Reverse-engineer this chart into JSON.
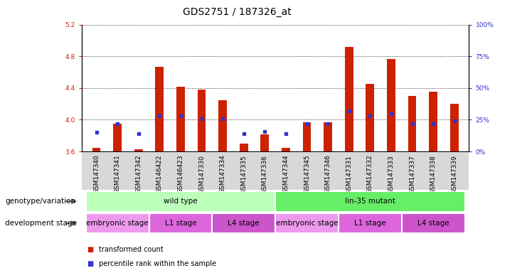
{
  "title": "GDS2751 / 187326_at",
  "samples": [
    "GSM147340",
    "GSM147341",
    "GSM147342",
    "GSM146422",
    "GSM146423",
    "GSM147330",
    "GSM147334",
    "GSM147335",
    "GSM147336",
    "GSM147344",
    "GSM147345",
    "GSM147346",
    "GSM147331",
    "GSM147332",
    "GSM147333",
    "GSM147337",
    "GSM147338",
    "GSM147339"
  ],
  "transformed_count": [
    3.65,
    3.95,
    3.63,
    4.67,
    4.42,
    4.38,
    4.25,
    3.7,
    3.82,
    3.65,
    3.97,
    3.97,
    4.92,
    4.45,
    4.77,
    4.3,
    4.35,
    4.2
  ],
  "percentile_rank": [
    15,
    22,
    14,
    28,
    28,
    26,
    26,
    14,
    16,
    14,
    22,
    22,
    32,
    28,
    30,
    22,
    22,
    24
  ],
  "ylim_left": [
    3.6,
    5.2
  ],
  "ylim_right": [
    0,
    100
  ],
  "yticks_left": [
    3.6,
    4.0,
    4.4,
    4.8,
    5.2
  ],
  "yticks_right": [
    0,
    25,
    50,
    75,
    100
  ],
  "bar_color": "#cc2200",
  "square_color": "#3333cc",
  "bar_width": 0.4,
  "base_value": 3.6,
  "genotype_groups": [
    {
      "label": "wild type",
      "start": 0,
      "end": 8,
      "color": "#bbffbb"
    },
    {
      "label": "lin-35 mutant",
      "start": 9,
      "end": 17,
      "color": "#66ee66"
    }
  ],
  "stage_groups": [
    {
      "label": "embryonic stage",
      "start": 0,
      "end": 2,
      "color": "#ee99ee"
    },
    {
      "label": "L1 stage",
      "start": 3,
      "end": 5,
      "color": "#dd66dd"
    },
    {
      "label": "L4 stage",
      "start": 6,
      "end": 8,
      "color": "#cc55cc"
    },
    {
      "label": "embryonic stage",
      "start": 9,
      "end": 11,
      "color": "#ee99ee"
    },
    {
      "label": "L1 stage",
      "start": 12,
      "end": 14,
      "color": "#dd66dd"
    },
    {
      "label": "L4 stage",
      "start": 15,
      "end": 17,
      "color": "#cc55cc"
    }
  ],
  "genotype_label": "genotype/variation",
  "stage_label": "development stage",
  "legend_items": [
    "transformed count",
    "percentile rank within the sample"
  ],
  "grid_color": "black",
  "background_color": "white",
  "title_fontsize": 10,
  "tick_fontsize": 6.5,
  "label_fontsize": 7.5,
  "xtick_area_color": "#d8d8d8"
}
